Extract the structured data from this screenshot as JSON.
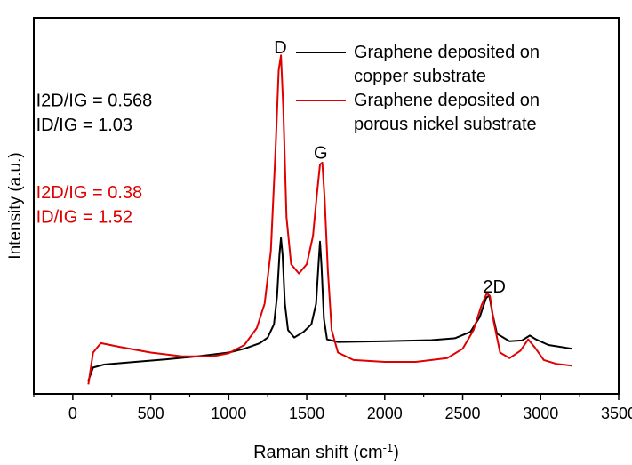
{
  "chart_data": {
    "type": "line",
    "title": "",
    "xlabel": "Raman shift (cm",
    "xlabel_sup": "-1",
    "xlabel_end": ")",
    "ylabel": "Intensity (a.u.)",
    "xlim": [
      -250,
      3500
    ],
    "ylim": [
      0,
      1.0
    ],
    "xticks": [
      0,
      500,
      1000,
      1500,
      2000,
      2500,
      3000,
      3500
    ],
    "yticks_shown": false,
    "legend_placement": "top-right",
    "series": [
      {
        "name": "Graphene deposited on copper substrate",
        "legend_lines": [
          "Graphene deposited on",
          "copper substrate"
        ],
        "color": "#000000",
        "points": [
          [
            100,
            0.035
          ],
          [
            130,
            0.07
          ],
          [
            200,
            0.078
          ],
          [
            400,
            0.085
          ],
          [
            600,
            0.092
          ],
          [
            800,
            0.1
          ],
          [
            1000,
            0.11
          ],
          [
            1100,
            0.12
          ],
          [
            1200,
            0.135
          ],
          [
            1250,
            0.15
          ],
          [
            1290,
            0.185
          ],
          [
            1310,
            0.26
          ],
          [
            1325,
            0.37
          ],
          [
            1335,
            0.415
          ],
          [
            1345,
            0.37
          ],
          [
            1360,
            0.24
          ],
          [
            1380,
            0.17
          ],
          [
            1420,
            0.15
          ],
          [
            1480,
            0.165
          ],
          [
            1530,
            0.185
          ],
          [
            1560,
            0.24
          ],
          [
            1575,
            0.34
          ],
          [
            1585,
            0.405
          ],
          [
            1595,
            0.34
          ],
          [
            1610,
            0.2
          ],
          [
            1630,
            0.145
          ],
          [
            1700,
            0.138
          ],
          [
            2000,
            0.14
          ],
          [
            2300,
            0.143
          ],
          [
            2450,
            0.148
          ],
          [
            2550,
            0.165
          ],
          [
            2610,
            0.205
          ],
          [
            2650,
            0.255
          ],
          [
            2670,
            0.262
          ],
          [
            2690,
            0.215
          ],
          [
            2720,
            0.16
          ],
          [
            2800,
            0.14
          ],
          [
            2880,
            0.142
          ],
          [
            2930,
            0.155
          ],
          [
            2970,
            0.145
          ],
          [
            3050,
            0.13
          ],
          [
            3200,
            0.12
          ]
        ]
      },
      {
        "name": "Graphene deposited on porous nickel substrate",
        "legend_lines": [
          "Graphene deposited on",
          "porous nickel substrate"
        ],
        "color": "#e00000",
        "points": [
          [
            100,
            0.025
          ],
          [
            130,
            0.11
          ],
          [
            180,
            0.135
          ],
          [
            300,
            0.125
          ],
          [
            500,
            0.11
          ],
          [
            700,
            0.1
          ],
          [
            900,
            0.1
          ],
          [
            1000,
            0.108
          ],
          [
            1100,
            0.13
          ],
          [
            1180,
            0.175
          ],
          [
            1230,
            0.24
          ],
          [
            1270,
            0.38
          ],
          [
            1300,
            0.65
          ],
          [
            1320,
            0.86
          ],
          [
            1335,
            0.9
          ],
          [
            1350,
            0.76
          ],
          [
            1370,
            0.47
          ],
          [
            1400,
            0.345
          ],
          [
            1450,
            0.32
          ],
          [
            1500,
            0.345
          ],
          [
            1540,
            0.42
          ],
          [
            1565,
            0.53
          ],
          [
            1585,
            0.61
          ],
          [
            1600,
            0.615
          ],
          [
            1615,
            0.52
          ],
          [
            1635,
            0.33
          ],
          [
            1660,
            0.17
          ],
          [
            1700,
            0.11
          ],
          [
            1800,
            0.09
          ],
          [
            2000,
            0.085
          ],
          [
            2200,
            0.085
          ],
          [
            2400,
            0.095
          ],
          [
            2500,
            0.12
          ],
          [
            2570,
            0.17
          ],
          [
            2620,
            0.235
          ],
          [
            2655,
            0.268
          ],
          [
            2675,
            0.26
          ],
          [
            2700,
            0.19
          ],
          [
            2740,
            0.11
          ],
          [
            2800,
            0.095
          ],
          [
            2870,
            0.115
          ],
          [
            2920,
            0.145
          ],
          [
            2960,
            0.125
          ],
          [
            3020,
            0.09
          ],
          [
            3100,
            0.08
          ],
          [
            3200,
            0.075
          ]
        ]
      }
    ],
    "annotations": [
      {
        "text": "D",
        "x": 1290,
        "y": 0.905
      },
      {
        "text": "G",
        "x": 1545,
        "y": 0.625
      },
      {
        "text": "2D",
        "x": 2630,
        "y": 0.27
      },
      {
        "text": "I2D/IG = 0.568",
        "x": -235,
        "y": 0.765,
        "color": "#000000"
      },
      {
        "text": "ID/IG = 1.03",
        "x": -235,
        "y": 0.7,
        "color": "#000000"
      },
      {
        "text": "I2D/IG = 0.38",
        "x": -235,
        "y": 0.52,
        "color": "#e00000"
      },
      {
        "text": "ID/IG = 1.52",
        "x": -235,
        "y": 0.455,
        "color": "#e00000"
      }
    ]
  }
}
